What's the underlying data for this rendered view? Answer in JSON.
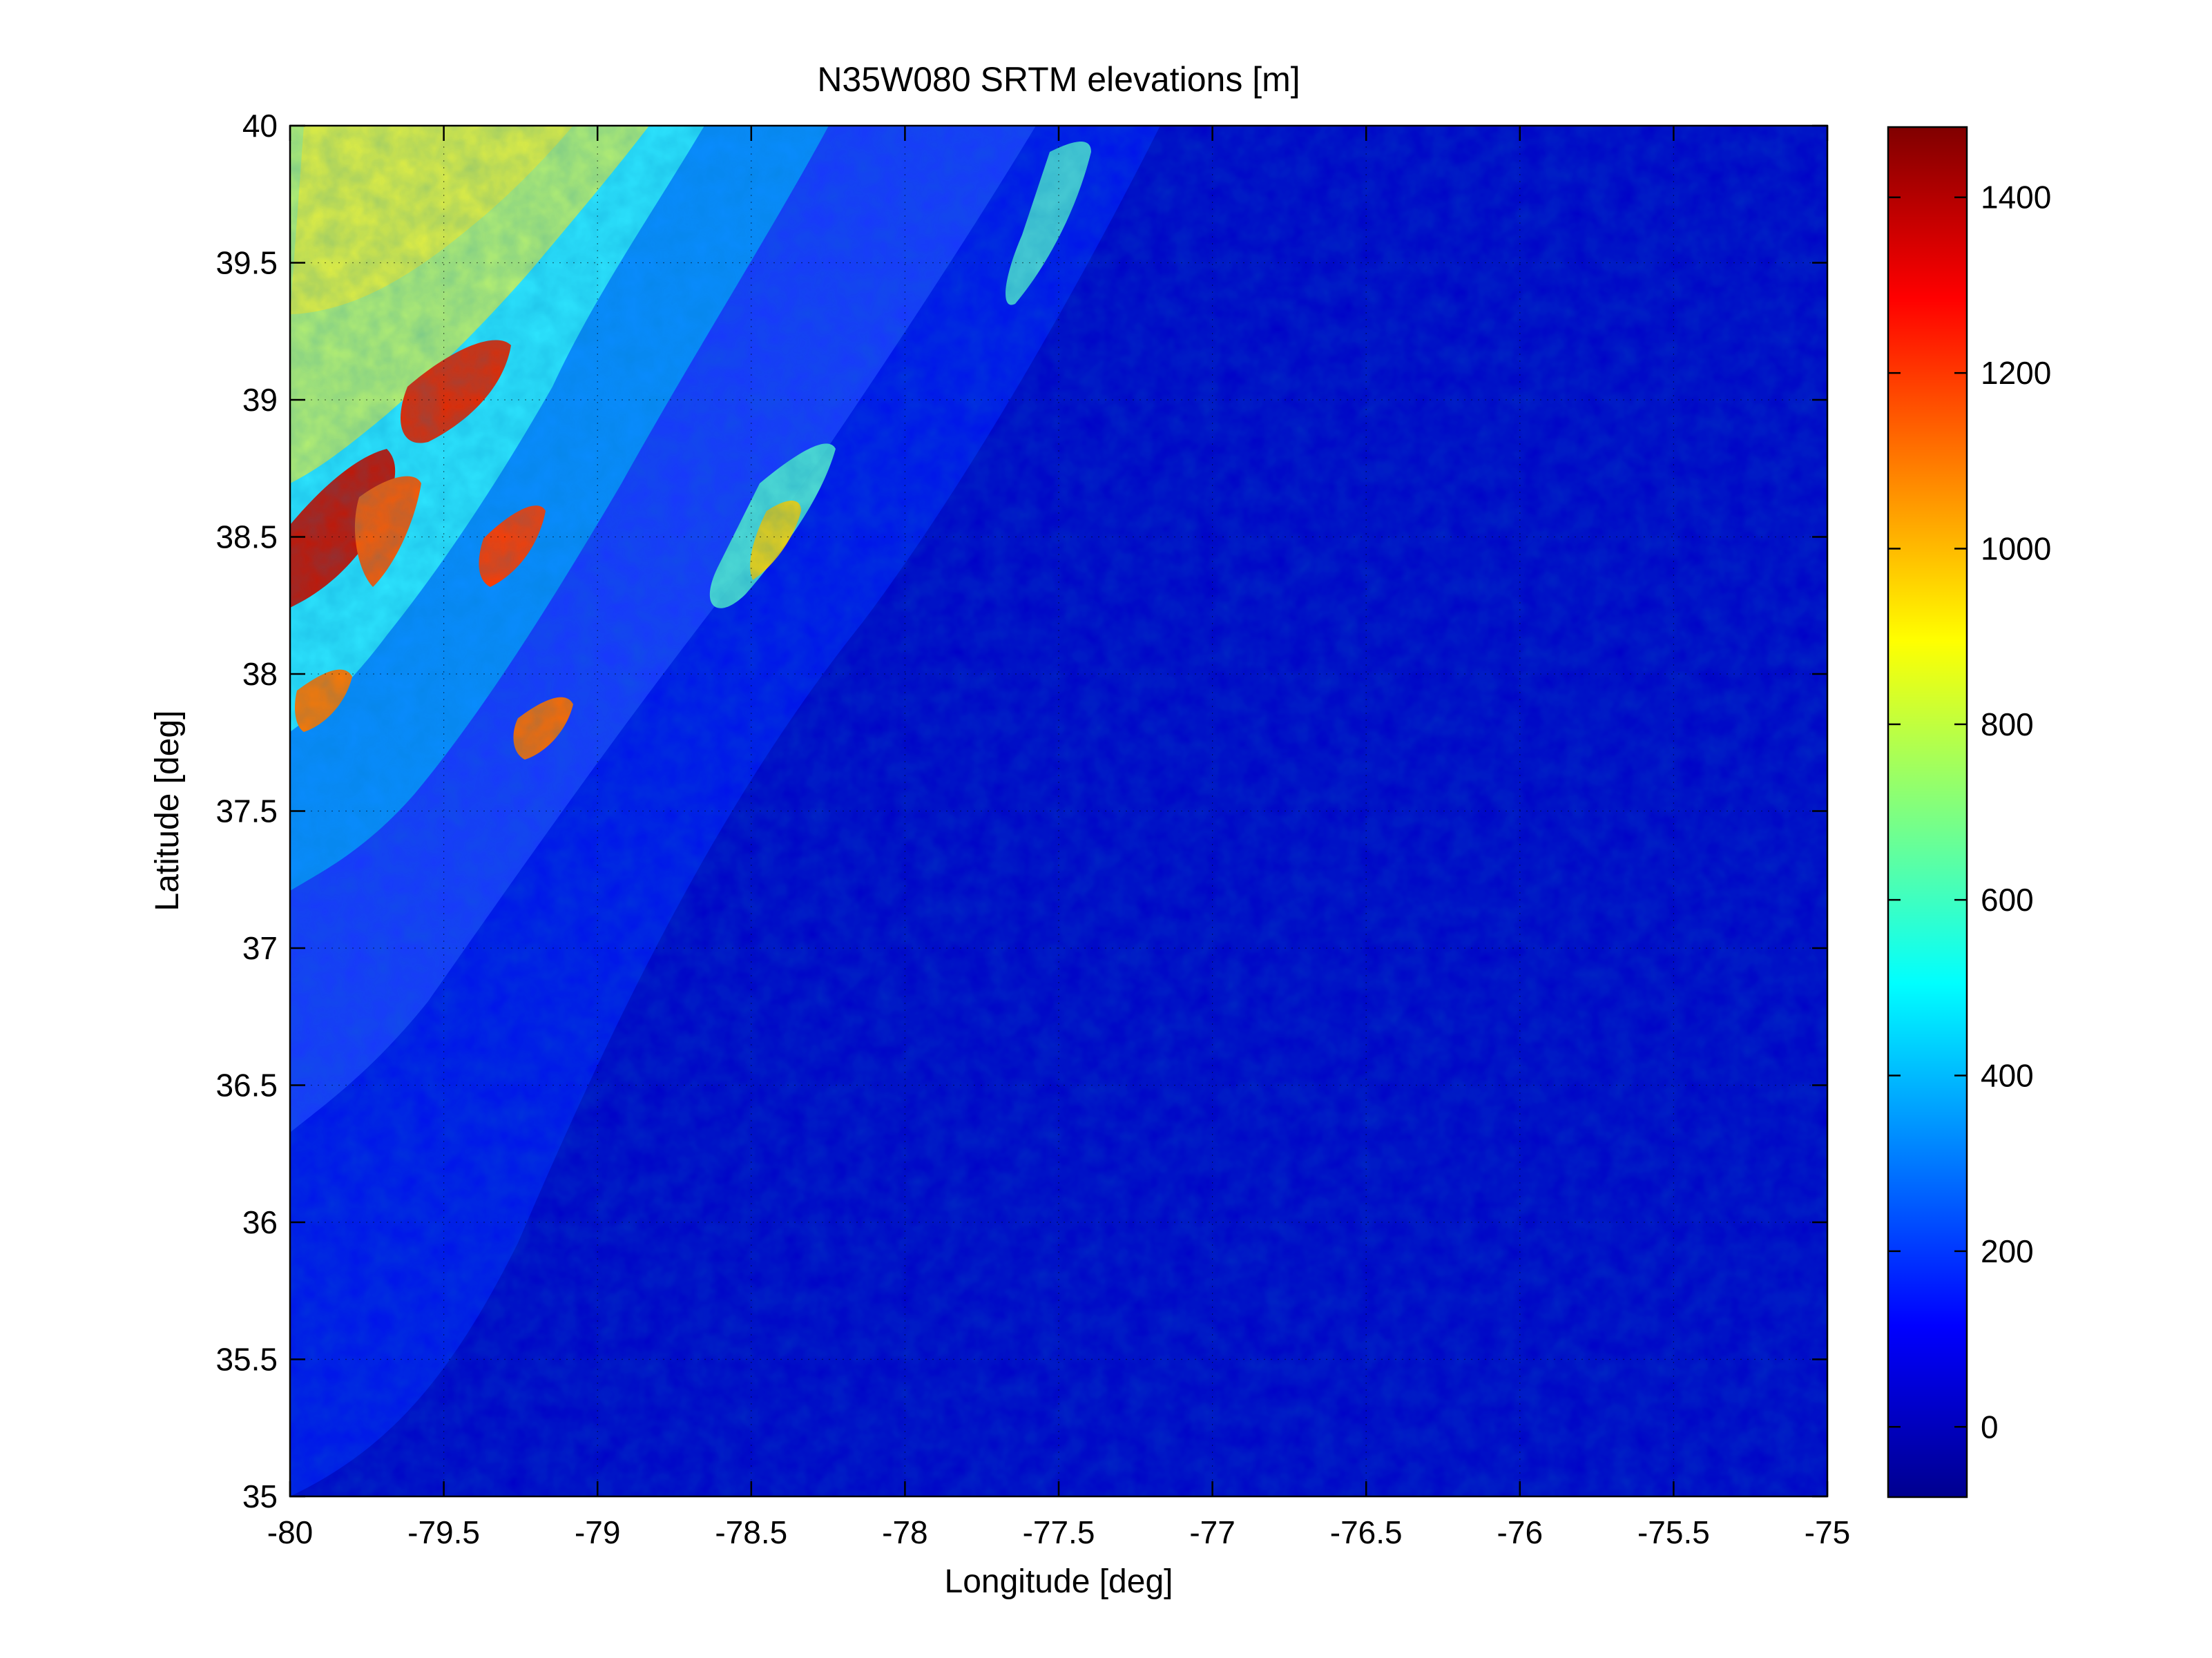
{
  "chart_data": {
    "type": "heatmap",
    "title": "N35W080 SRTM elevations [m]",
    "xlabel": "Longitude [deg]",
    "ylabel": "Latitude [deg]",
    "xlim": [
      -80,
      -75
    ],
    "ylim": [
      35,
      40
    ],
    "x_ticks": [
      -80,
      -79.5,
      -79,
      -78.5,
      -78,
      -77.5,
      -77,
      -76.5,
      -76,
      -75.5,
      -75
    ],
    "y_ticks": [
      35,
      35.5,
      36,
      36.5,
      37,
      37.5,
      38,
      38.5,
      39,
      39.5,
      40
    ],
    "grid": true,
    "colormap": "jet",
    "colorbar": {
      "placement": "right",
      "range": [
        -80,
        1480
      ],
      "ticks": [
        0,
        200,
        400,
        600,
        800,
        1000,
        1200,
        1400
      ]
    }
  }
}
